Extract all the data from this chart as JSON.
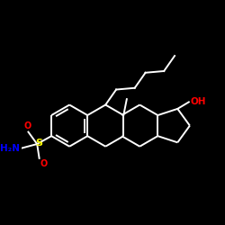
{
  "background_color": "#000000",
  "bond_color": "#ffffff",
  "atom_colors": {
    "O": "#ff0000",
    "S": "#ffff00",
    "N": "#0000ff",
    "C": "#ffffff"
  },
  "bond_width": 1.4,
  "figsize": [
    2.5,
    2.5
  ],
  "dpi": 100
}
